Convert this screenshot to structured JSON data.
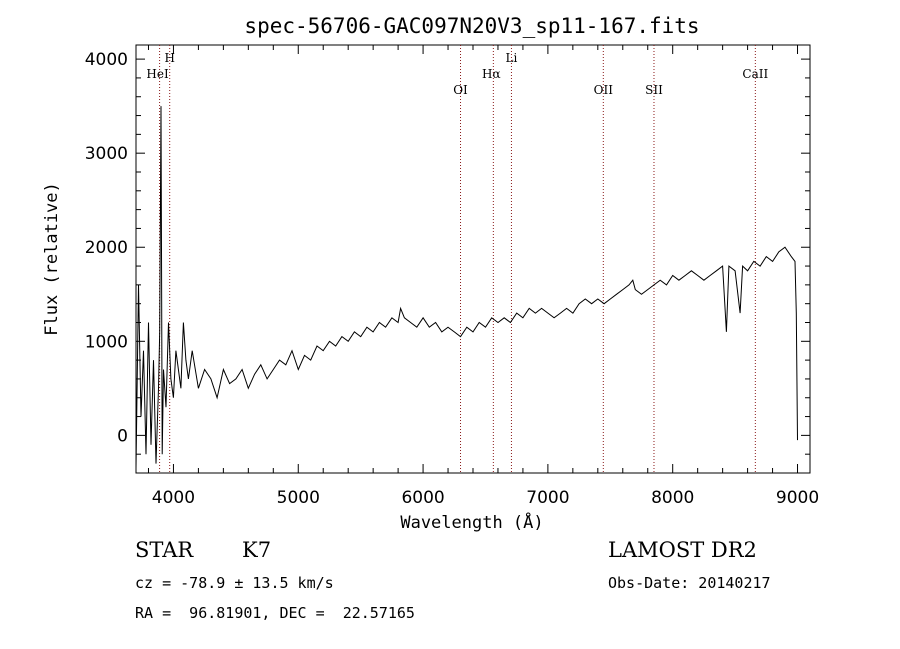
{
  "chart_data": {
    "type": "line",
    "title": "spec-56706-GAC097N20V3_sp11-167.fits",
    "xlabel": "Wavelength (Å)",
    "ylabel": "Flux (relative)",
    "xlim": [
      3700,
      9100
    ],
    "ylim": [
      -400,
      4150
    ],
    "xticks": [
      4000,
      5000,
      6000,
      7000,
      8000,
      9000
    ],
    "yticks": [
      0,
      1000,
      2000,
      3000,
      4000
    ],
    "grid": false,
    "line_color": "#000000",
    "marker_color": "#8b1a1a",
    "series": [
      {
        "x": [
          3700,
          3720,
          3740,
          3760,
          3780,
          3800,
          3820,
          3840,
          3860,
          3880,
          3890,
          3900,
          3910,
          3920,
          3940,
          3960,
          3980,
          4000,
          4020,
          4040,
          4060,
          4080,
          4100,
          4120,
          4150,
          4200,
          4250,
          4300,
          4350,
          4400,
          4450,
          4500,
          4550,
          4600,
          4650,
          4700,
          4750,
          4800,
          4850,
          4900,
          4950,
          5000,
          5050,
          5100,
          5150,
          5200,
          5250,
          5300,
          5350,
          5400,
          5450,
          5500,
          5550,
          5600,
          5650,
          5700,
          5750,
          5800,
          5820,
          5850,
          5900,
          5950,
          6000,
          6050,
          6100,
          6150,
          6200,
          6250,
          6300,
          6350,
          6400,
          6450,
          6500,
          6550,
          6600,
          6650,
          6700,
          6750,
          6800,
          6850,
          6900,
          6950,
          7000,
          7050,
          7100,
          7150,
          7200,
          7250,
          7300,
          7350,
          7400,
          7450,
          7500,
          7550,
          7600,
          7650,
          7680,
          7700,
          7750,
          7800,
          7850,
          7900,
          7950,
          8000,
          8050,
          8100,
          8150,
          8200,
          8250,
          8300,
          8350,
          8400,
          8430,
          8450,
          8500,
          8540,
          8560,
          8600,
          8650,
          8700,
          8750,
          8800,
          8850,
          8900,
          8950,
          8980,
          8990,
          9000
        ],
        "y": [
          -350,
          1600,
          200,
          900,
          -200,
          1200,
          -100,
          800,
          -300,
          500,
          1100,
          3500,
          -200,
          700,
          300,
          1200,
          600,
          400,
          900,
          700,
          500,
          1200,
          800,
          600,
          900,
          500,
          700,
          600,
          400,
          700,
          550,
          600,
          700,
          500,
          650,
          750,
          600,
          700,
          800,
          750,
          900,
          700,
          850,
          800,
          950,
          900,
          1000,
          950,
          1050,
          1000,
          1100,
          1050,
          1150,
          1100,
          1200,
          1150,
          1250,
          1200,
          1350,
          1250,
          1200,
          1150,
          1250,
          1150,
          1200,
          1100,
          1150,
          1100,
          1050,
          1150,
          1100,
          1200,
          1150,
          1250,
          1200,
          1250,
          1200,
          1300,
          1250,
          1350,
          1300,
          1350,
          1300,
          1250,
          1300,
          1350,
          1300,
          1400,
          1450,
          1400,
          1450,
          1400,
          1450,
          1500,
          1550,
          1600,
          1650,
          1550,
          1500,
          1550,
          1600,
          1650,
          1600,
          1700,
          1650,
          1700,
          1750,
          1700,
          1650,
          1700,
          1750,
          1800,
          1100,
          1800,
          1750,
          1300,
          1800,
          1750,
          1850,
          1800,
          1900,
          1850,
          1950,
          2000,
          1900,
          1850,
          1300,
          -50
        ]
      }
    ],
    "lines": [
      {
        "label": "HeI",
        "x": 3889
      },
      {
        "label": "H",
        "x": 3970
      },
      {
        "label": "OI",
        "x": 6300
      },
      {
        "label": "Hα",
        "x": 6563
      },
      {
        "label": "Li",
        "x": 6708
      },
      {
        "label": "OII",
        "x": 7444
      },
      {
        "label": "SII",
        "x": 7850
      },
      {
        "label": "CaII",
        "x": 8662
      }
    ]
  },
  "footer": {
    "object_class": "STAR",
    "subclass": "K7",
    "survey": "LAMOST DR2",
    "redshift": "cz = -78.9 ± 13.5 km/s",
    "obs_date": "Obs-Date: 20140217",
    "coords": "RA =  96.81901, DEC =  22.57165"
  }
}
